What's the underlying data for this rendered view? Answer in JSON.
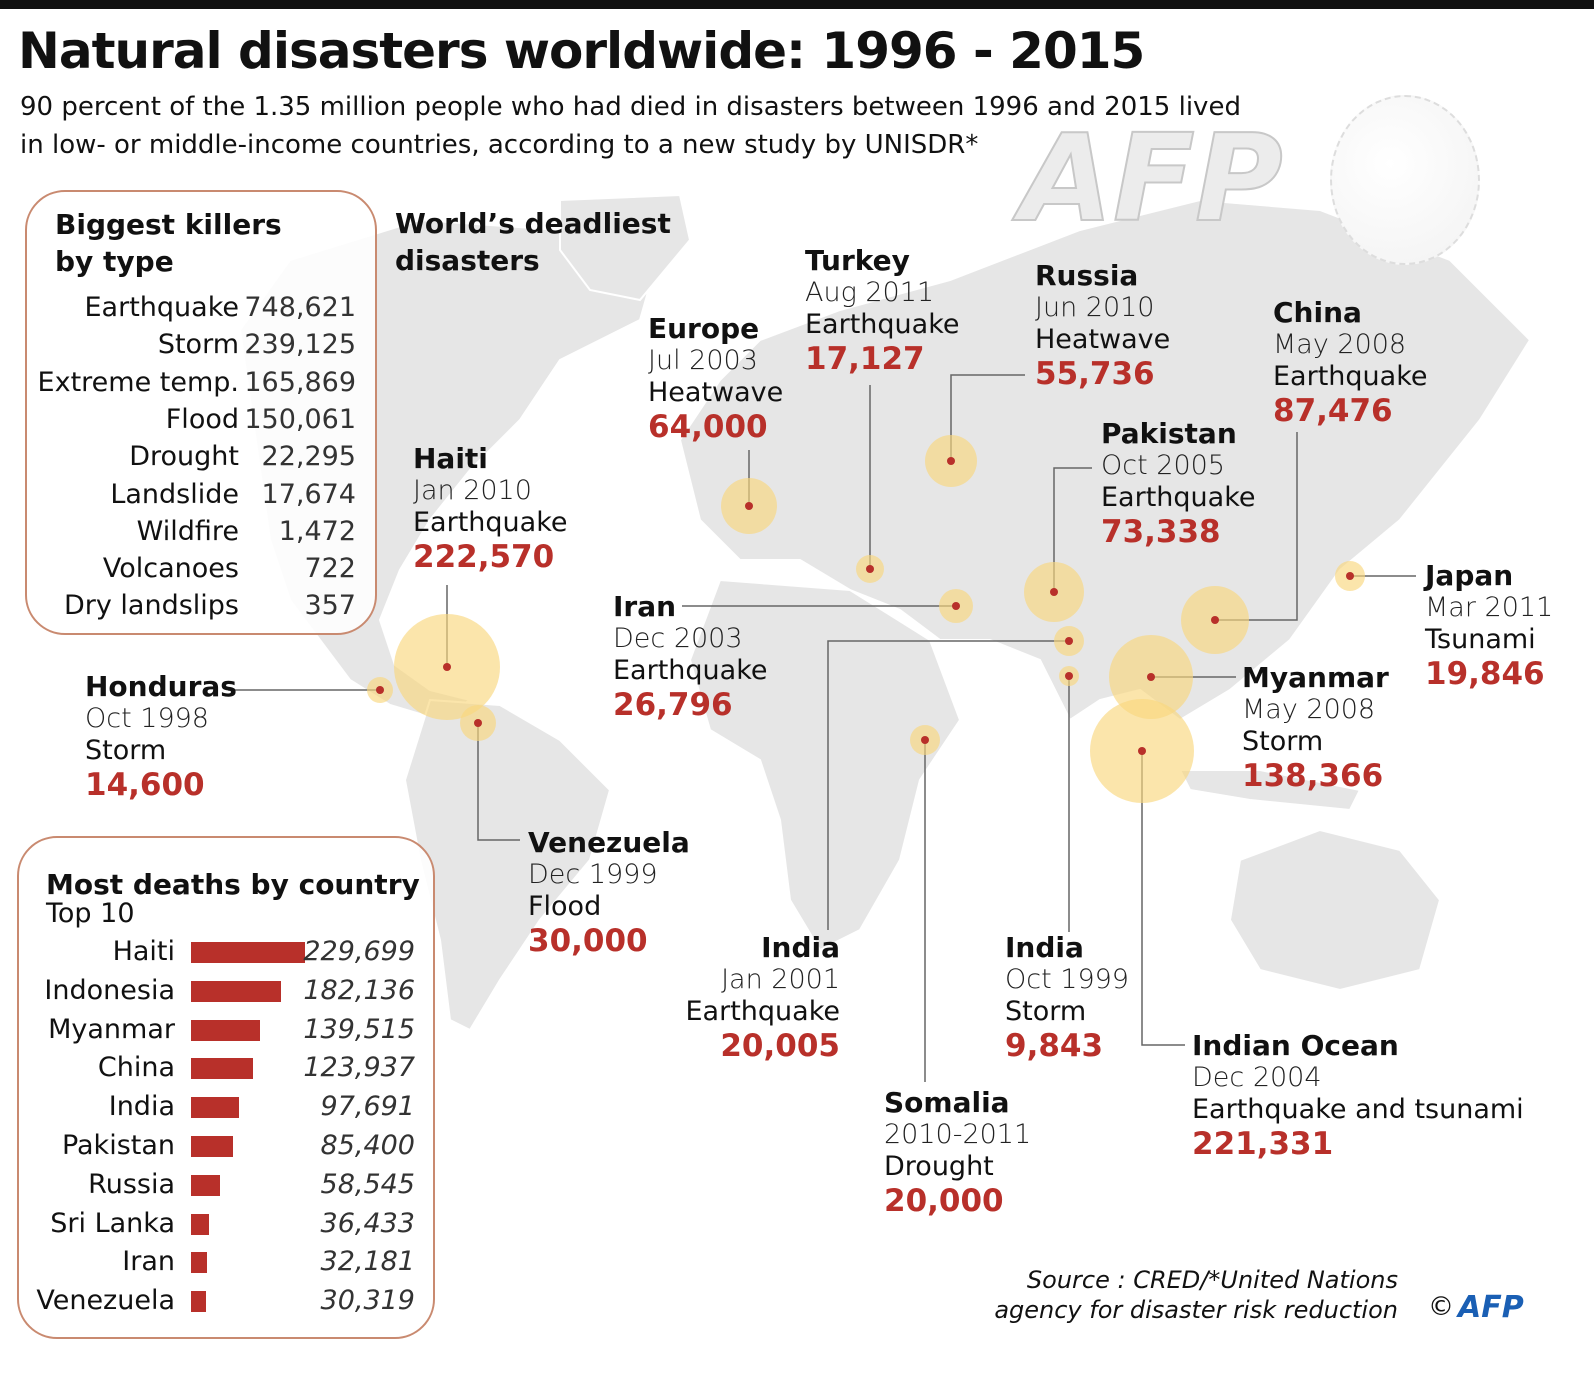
{
  "title": "Natural disasters worldwide: 1996 - 2015",
  "subtitle": "90 percent of the 1.35 million people who had died in disasters between 1996 and 2015 lived in low- or middle-income countries, according to a new study by UNISDR*",
  "watermark": "AFP",
  "colors": {
    "accent": "#b8302a",
    "bubble": "#f9d77e",
    "map": "#e6e6e6",
    "box_border": "#c98a70",
    "logo": "#1a5fb4"
  },
  "killers": {
    "title": "Biggest killers by type",
    "rows": [
      {
        "label": "Earthquake",
        "value": "748,621"
      },
      {
        "label": "Storm",
        "value": "239,125"
      },
      {
        "label": "Extreme temp.",
        "value": "165,869"
      },
      {
        "label": "Flood",
        "value": "150,061"
      },
      {
        "label": "Drought",
        "value": "22,295"
      },
      {
        "label": "Landslide",
        "value": "17,674"
      },
      {
        "label": "Wildfire",
        "value": "1,472"
      },
      {
        "label": "Volcanoes",
        "value": "722"
      },
      {
        "label": "Dry landslips",
        "value": "357"
      }
    ]
  },
  "deadliest_title": "World’s deadliest disasters",
  "disasters": [
    {
      "place": "Turkey",
      "date": "Aug 2011",
      "type": "Earthquake",
      "deaths": "17,127"
    },
    {
      "place": "Russia",
      "date": "Jun 2010",
      "type": "Heatwave",
      "deaths": "55,736"
    },
    {
      "place": "Europe",
      "date": "Jul 2003",
      "type": "Heatwave",
      "deaths": "64,000"
    },
    {
      "place": "China",
      "date": "May 2008",
      "type": "Earthquake",
      "deaths": "87,476"
    },
    {
      "place": "Pakistan",
      "date": "Oct 2005",
      "type": "Earthquake",
      "deaths": "73,338"
    },
    {
      "place": "Haiti",
      "date": "Jan 2010",
      "type": "Earthquake",
      "deaths": "222,570"
    },
    {
      "place": "Iran",
      "date": "Dec 2003",
      "type": "Earthquake",
      "deaths": "26,796"
    },
    {
      "place": "Japan",
      "date": "Mar 2011",
      "type": "Tsunami",
      "deaths": "19,846"
    },
    {
      "place": "Honduras",
      "date": "Oct 1998",
      "type": "Storm",
      "deaths": "14,600"
    },
    {
      "place": "Myanmar",
      "date": "May 2008",
      "type": "Storm",
      "deaths": "138,366"
    },
    {
      "place": "Venezuela",
      "date": "Dec 1999",
      "type": "Flood",
      "deaths": "30,000"
    },
    {
      "place": "India",
      "date": "Jan 2001",
      "type": "Earthquake",
      "deaths": "20,005"
    },
    {
      "place": "India",
      "date": "Oct 1999",
      "type": "Storm",
      "deaths": "9,843"
    },
    {
      "place": "Somalia",
      "date": "2010-2011",
      "type": "Drought",
      "deaths": "20,000"
    },
    {
      "place": "Indian Ocean",
      "date": "Dec 2004",
      "type": "Earthquake and tsunami",
      "deaths": "221,331"
    }
  ],
  "chart_data": {
    "type": "bar",
    "orientation": "horizontal",
    "title": "Most deaths by country",
    "subtitle": "Top 10",
    "categories": [
      "Haiti",
      "Indonesia",
      "Myanmar",
      "China",
      "India",
      "Pakistan",
      "Russia",
      "Sri Lanka",
      "Iran",
      "Venezuela"
    ],
    "values": [
      229699,
      182136,
      139515,
      123937,
      97691,
      85400,
      58545,
      36433,
      32181,
      30319
    ],
    "labels": [
      "229,699",
      "182,136",
      "139,515",
      "123,937",
      "97,691",
      "85,400",
      "58,545",
      "36,433",
      "32,181",
      "30,319"
    ],
    "grid": false
  },
  "source": "Source : CRED/*United Nations agency for disaster risk reduction",
  "copyright": "©",
  "logo": "AFP"
}
